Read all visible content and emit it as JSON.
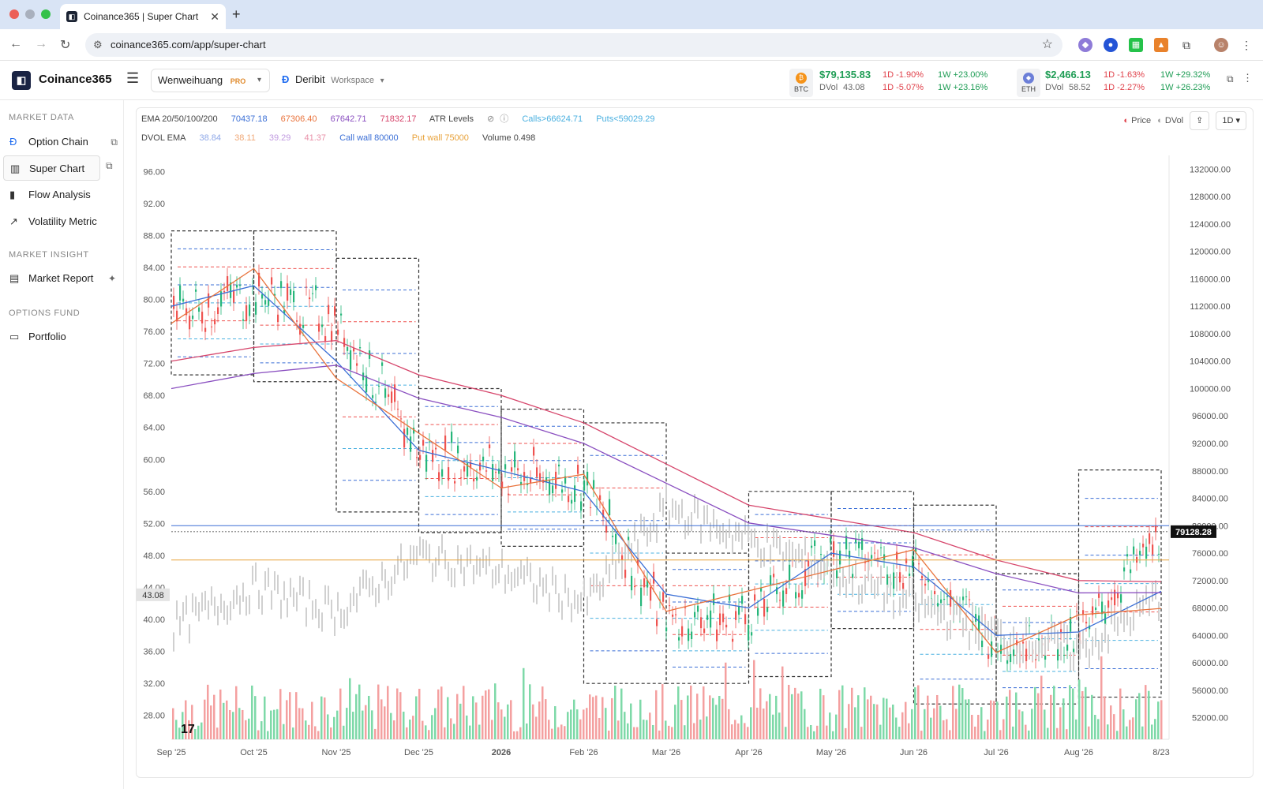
{
  "browser": {
    "tab_title": "Coinance365 | Super Chart",
    "url": "coinance365.com/app/super-chart"
  },
  "header": {
    "brand": "Coinance365",
    "user": "Wenweihuang",
    "user_badge": "PRO",
    "exchange": "Deribit",
    "exchange_sub": "Workspace"
  },
  "tickers": {
    "btc": {
      "symbol": "BTC",
      "price": "$79,135.83",
      "dvol_label": "DVol",
      "dvol": "43.08",
      "d1_price": "1D -1.90%",
      "d1_dvol": "1D -5.07%",
      "w1_price": "1W +23.00%",
      "w1_dvol": "1W +23.16%"
    },
    "eth": {
      "symbol": "ETH",
      "price": "$2,466.13",
      "dvol_label": "DVol",
      "dvol": "58.52",
      "d1_price": "1D -1.63%",
      "d1_dvol": "1D -2.27%",
      "w1_price": "1W +29.32%",
      "w1_dvol": "1W +26.23%"
    }
  },
  "sidebar": {
    "market_data": "MARKET DATA",
    "items1": [
      "Option Chain",
      "Super Chart",
      "Flow Analysis",
      "Volatility Metric"
    ],
    "market_insight": "MARKET INSIGHT",
    "items2": [
      "Market Report"
    ],
    "options_fund": "OPTIONS FUND",
    "items3": [
      "Portfolio"
    ]
  },
  "legend": {
    "ema_label": "EMA 20/50/100/200",
    "ema_vals": [
      "70437.18",
      "67306.40",
      "67642.71",
      "71832.17"
    ],
    "atr_label": "ATR Levels",
    "calls": "Calls>66624.71",
    "puts": "Puts<59029.29",
    "dvol_ema_label": "DVOL EMA",
    "dvol_ema_vals": [
      "38.84",
      "38.11",
      "39.29",
      "41.37"
    ],
    "call_wall": "Call wall 80000",
    "put_wall": "Put wall 75000",
    "volume": "Volume 0.498"
  },
  "controls": {
    "price_toggle": "Price",
    "dvol_toggle": "DVol",
    "interval": "1D"
  },
  "colors": {
    "up": "#26b67a",
    "down": "#ef5350",
    "ema20": "#3b6fd6",
    "ema50": "#e9733c",
    "ema100": "#8a4fc0",
    "ema200": "#d6456b",
    "box": "#333333",
    "call": "#3b6fd6",
    "put": "#e8a33c"
  },
  "chart_data": {
    "type": "line",
    "title": "",
    "left_axis_ticks": [
      "96.00",
      "92.00",
      "88.00",
      "84.00",
      "80.00",
      "76.00",
      "72.00",
      "68.00",
      "64.00",
      "60.00",
      "56.00",
      "52.00",
      "48.00",
      "44.00",
      "40.00",
      "36.00",
      "32.00",
      "28.00"
    ],
    "right_axis_ticks": [
      "132000.00",
      "128000.00",
      "124000.00",
      "120000.00",
      "116000.00",
      "112000.00",
      "108000.00",
      "104000.00",
      "100000.00",
      "96000.00",
      "92000.00",
      "88000.00",
      "84000.00",
      "80000.00",
      "76000.00",
      "72000.00",
      "68000.00",
      "64000.00",
      "60000.00",
      "56000.00",
      "52000.00"
    ],
    "x_ticks": [
      "Sep '25",
      "Oct '25",
      "Nov '25",
      "Dec '25",
      "2026",
      "Feb '26",
      "Mar '26",
      "Apr '26",
      "May '26",
      "Jun '26",
      "Jul '26",
      "Aug '26",
      "8/23"
    ],
    "last_price": "79128.28",
    "last_dvol": "43.08",
    "series": [
      {
        "name": "BTC",
        "axis": "right",
        "x": [
          "Sep '25",
          "Oct '25",
          "Nov '25",
          "Dec '25",
          "2026",
          "Feb '26",
          "Mar '26",
          "Apr '26",
          "May '26",
          "Jun '26",
          "Jul '26",
          "Aug '26",
          "8/23"
        ],
        "values": [
          111000,
          114000,
          110000,
          91000,
          88000,
          86000,
          66000,
          67000,
          76000,
          74000,
          63000,
          64000,
          79128
        ]
      },
      {
        "name": "EMA 20",
        "axis": "right",
        "values": [
          112000,
          115000,
          104000,
          91000,
          88000,
          85000,
          70000,
          68000,
          76000,
          74000,
          64000,
          64500,
          70437
        ]
      },
      {
        "name": "EMA 200",
        "axis": "right",
        "values": [
          104000,
          106000,
          107000,
          102000,
          99000,
          95000,
          89000,
          83000,
          81000,
          79000,
          75000,
          72000,
          71832
        ]
      },
      {
        "name": "DVol",
        "axis": "left",
        "values": [
          39,
          44,
          41,
          48,
          46,
          42,
          54,
          50,
          46,
          42,
          38,
          36,
          43.08
        ]
      }
    ],
    "ylim_left": [
      26,
      98
    ],
    "ylim_right": [
      50000,
      134000
    ]
  }
}
